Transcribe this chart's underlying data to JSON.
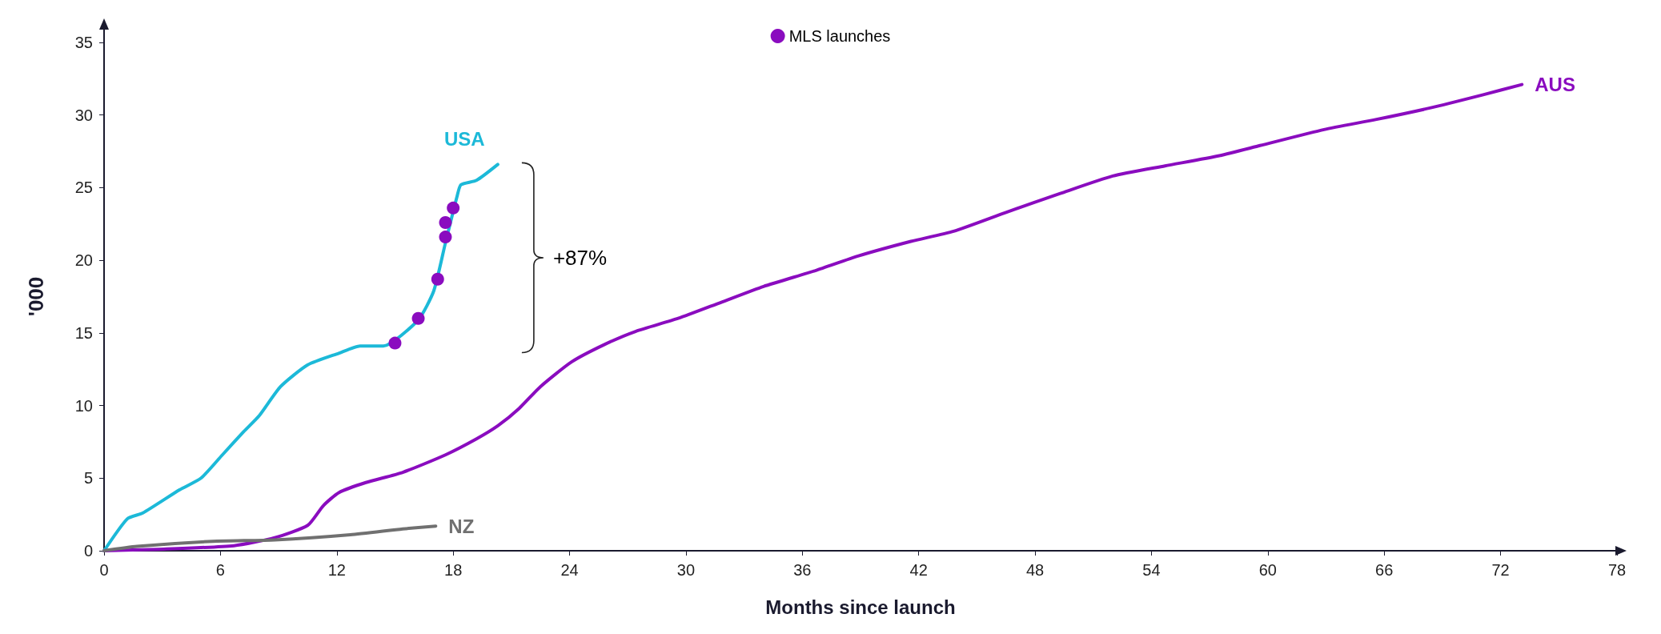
{
  "chart_data": {
    "type": "line",
    "xlabel": "Months since launch",
    "ylabel": "'000",
    "xlim": [
      0,
      78
    ],
    "xticks": [
      0,
      6,
      12,
      18,
      24,
      30,
      36,
      42,
      48,
      54,
      60,
      66,
      72,
      78
    ],
    "ylim": [
      0,
      35
    ],
    "yticks": [
      0,
      5,
      10,
      15,
      20,
      25,
      30,
      35
    ],
    "grid": false,
    "legend": "top",
    "line_style": "solid",
    "marker": "none",
    "annotations": [
      "+87%"
    ],
    "series": [
      {
        "name": "USA",
        "color": "#1cb9d8",
        "x": [
          0,
          1.2,
          2,
          3.9,
          5,
          6.1,
          7.2,
          8,
          9.1,
          10.5,
          12.1,
          13.2,
          14.4,
          16.2,
          17,
          17.6,
          18.2,
          18.4,
          19.2,
          20.3
        ],
        "values": [
          0,
          2.2,
          2.6,
          4.2,
          5,
          6.6,
          8.2,
          9.3,
          11.3,
          12.8,
          13.6,
          14.1,
          14.1,
          15.9,
          17.9,
          21.2,
          24.4,
          25.2,
          25.5,
          26.6
        ]
      },
      {
        "name": "AUS",
        "color": "#8a0cbf",
        "x": [
          0,
          2.8,
          6.7,
          8.8,
          10.5,
          11.3,
          12.1,
          13.5,
          15.4,
          17.6,
          19.2,
          20.3,
          21.4,
          22.5,
          24.1,
          25.8,
          27.4,
          29.6,
          31.8,
          34,
          36.7,
          38.9,
          41.6,
          43.8,
          46.5,
          49.3,
          52,
          54.7,
          57.5,
          59.6,
          62.9,
          65.6,
          68.4,
          71.1,
          73.1
        ],
        "values": [
          0,
          0.1,
          0.35,
          0.9,
          1.75,
          3.1,
          4,
          4.7,
          5.4,
          6.6,
          7.7,
          8.6,
          9.8,
          11.3,
          13,
          14.2,
          15.1,
          16,
          17.1,
          18.2,
          19.3,
          20.3,
          21.3,
          22,
          23.3,
          24.6,
          25.8,
          26.5,
          27.2,
          27.9,
          29,
          29.7,
          30.5,
          31.4,
          32.1
        ]
      },
      {
        "name": "NZ",
        "color": "#707070",
        "x": [
          0,
          1.7,
          5.6,
          8.8,
          12.7,
          15.4,
          17.1
        ],
        "values": [
          0,
          0.3,
          0.65,
          0.75,
          1.1,
          1.5,
          1.7
        ]
      },
      {
        "name": "MLS launches",
        "type": "scatter",
        "marker": "circle",
        "color": "#8a0cbf",
        "x": [
          15,
          16.2,
          17.2,
          17.6,
          17.6,
          18
        ],
        "values": [
          14.3,
          16,
          18.7,
          21.6,
          22.6,
          23.6
        ]
      }
    ]
  }
}
